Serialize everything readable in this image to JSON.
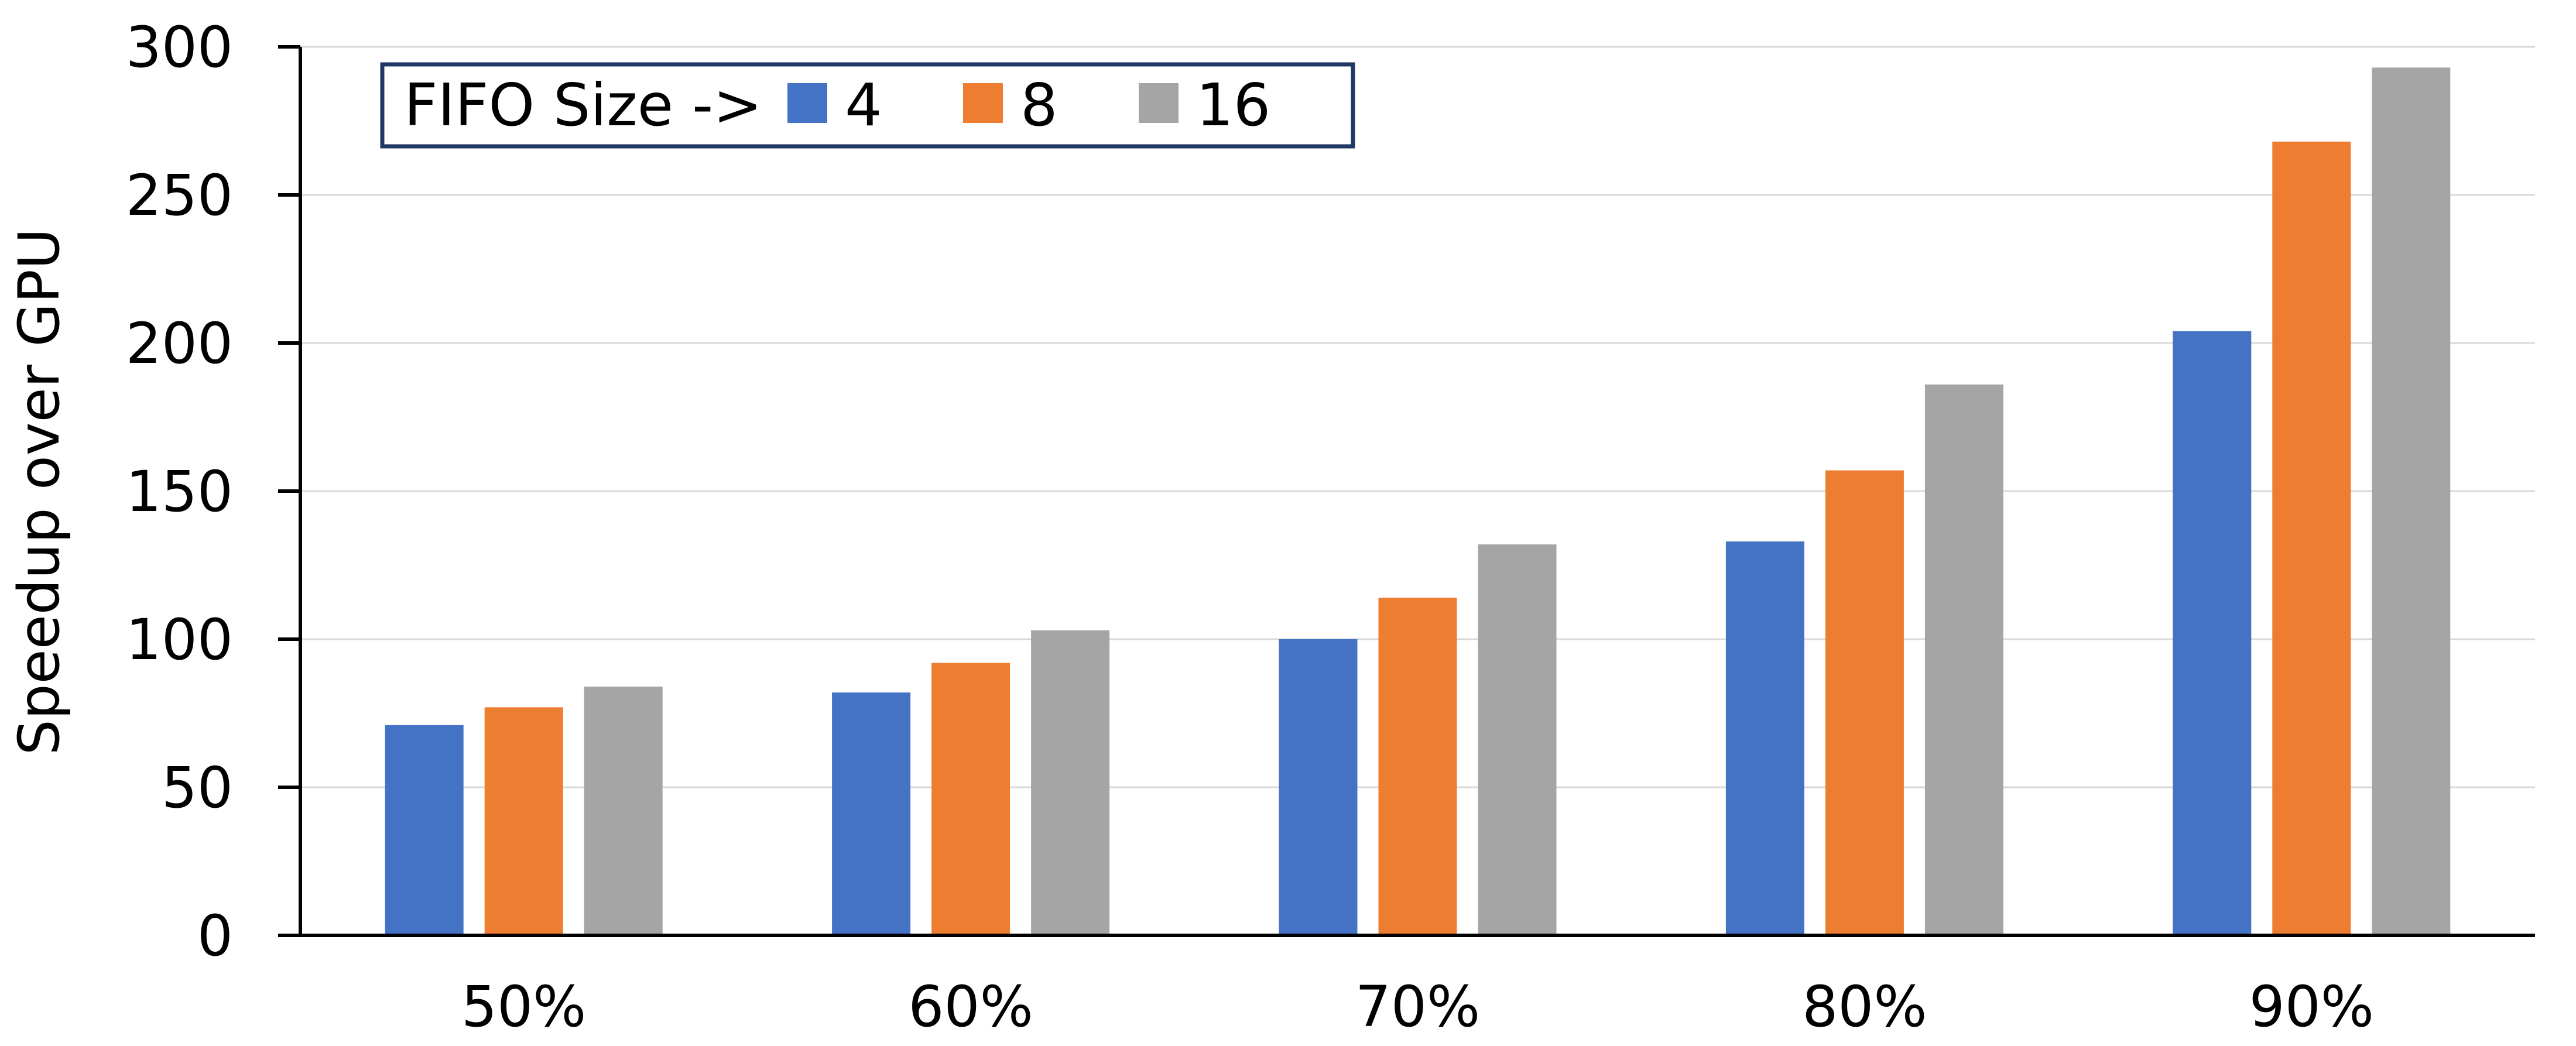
{
  "chart_data": {
    "type": "bar",
    "title": "",
    "xlabel": "",
    "ylabel": "Speedup over GPU",
    "categories": [
      "50%",
      "60%",
      "70%",
      "80%",
      "90%"
    ],
    "ylim": [
      0,
      300
    ],
    "yticks": [
      0,
      50,
      100,
      150,
      200,
      250,
      300
    ],
    "grid": true,
    "legend_placement": "top-left",
    "legend_title": "FIFO Size ->",
    "series": [
      {
        "name": "4",
        "color": "#4472C4",
        "values": [
          71,
          82,
          100,
          133,
          204
        ]
      },
      {
        "name": "8",
        "color": "#ED7D31",
        "values": [
          77,
          92,
          114,
          157,
          268
        ]
      },
      {
        "name": "16",
        "color": "#A5A5A5",
        "values": [
          84,
          103,
          132,
          186,
          293
        ]
      }
    ]
  }
}
